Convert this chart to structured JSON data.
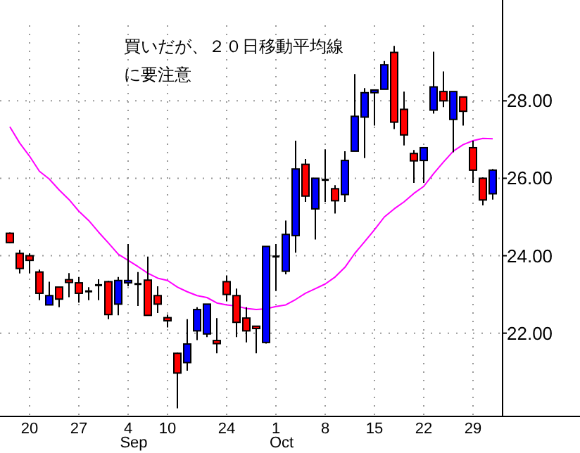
{
  "chart_data": {
    "type": "candlestick",
    "annotations": [
      "買いだが、２０日移動平均線",
      "に要注意"
    ],
    "categories": [
      null,
      null,
      "20",
      null,
      null,
      null,
      null,
      "27",
      null,
      null,
      null,
      null,
      "4\nSep",
      null,
      null,
      null,
      "10",
      null,
      null,
      null,
      null,
      null,
      "24",
      null,
      null,
      null,
      null,
      "1\nOct",
      null,
      null,
      null,
      null,
      "8",
      null,
      null,
      null,
      null,
      "15",
      null,
      null,
      null,
      null,
      "22",
      null,
      null,
      null,
      null,
      "29",
      null,
      null
    ],
    "ohlc": [
      [
        24.58,
        24.6,
        24.33,
        24.34
      ],
      [
        24.06,
        24.15,
        23.54,
        23.67
      ],
      [
        24.0,
        24.06,
        23.54,
        23.88
      ],
      [
        23.58,
        23.64,
        22.85,
        23.03
      ],
      [
        22.73,
        23.33,
        22.73,
        22.97
      ],
      [
        23.19,
        23.19,
        22.67,
        22.88
      ],
      [
        23.38,
        23.55,
        22.93,
        23.31
      ],
      [
        23.3,
        23.45,
        22.79,
        23.03
      ],
      [
        23.08,
        23.19,
        22.85,
        23.06
      ],
      [
        23.24,
        23.39,
        22.85,
        23.22
      ],
      [
        23.33,
        23.35,
        22.36,
        22.48
      ],
      [
        22.75,
        23.45,
        22.46,
        23.36
      ],
      [
        23.3,
        24.3,
        23.21,
        23.36
      ],
      [
        23.27,
        23.58,
        22.7,
        23.25
      ],
      [
        23.37,
        23.98,
        22.46,
        22.46
      ],
      [
        22.97,
        23.21,
        22.52,
        22.75
      ],
      [
        22.4,
        22.48,
        22.15,
        22.32
      ],
      [
        21.48,
        21.5,
        20.06,
        20.97
      ],
      [
        21.24,
        22.36,
        21.03,
        21.72
      ],
      [
        22.06,
        22.67,
        21.82,
        22.61
      ],
      [
        21.98,
        22.75,
        21.9,
        22.75
      ],
      [
        21.81,
        22.39,
        21.48,
        21.73
      ],
      [
        23.33,
        23.49,
        22.82,
        23.0
      ],
      [
        22.97,
        23.15,
        21.9,
        22.28
      ],
      [
        22.39,
        22.67,
        21.76,
        22.06
      ],
      [
        22.18,
        22.18,
        21.48,
        22.12
      ],
      [
        21.76,
        24.24,
        21.73,
        24.24
      ],
      [
        23.98,
        24.3,
        23.09,
        23.98
      ],
      [
        23.6,
        24.91,
        23.52,
        24.55
      ],
      [
        24.52,
        26.97,
        24.08,
        26.24
      ],
      [
        26.36,
        26.5,
        25.39,
        25.54
      ],
      [
        25.21,
        26.0,
        24.42,
        26.0
      ],
      [
        25.96,
        26.75,
        25.39,
        25.94
      ],
      [
        25.73,
        25.82,
        25.09,
        25.42
      ],
      [
        25.58,
        26.7,
        25.39,
        26.46
      ],
      [
        26.7,
        28.69,
        26.7,
        27.6
      ],
      [
        27.58,
        28.33,
        26.52,
        28.21
      ],
      [
        28.21,
        28.28,
        27.36,
        28.28
      ],
      [
        28.3,
        29.03,
        28.3,
        28.93
      ],
      [
        29.25,
        29.42,
        27.27,
        27.45
      ],
      [
        27.78,
        28.24,
        26.85,
        27.12
      ],
      [
        26.64,
        26.73,
        25.88,
        26.45
      ],
      [
        26.46,
        26.79,
        25.88,
        26.79
      ],
      [
        27.76,
        29.27,
        27.67,
        28.36
      ],
      [
        28.24,
        28.76,
        27.84,
        28.0
      ],
      [
        27.52,
        28.24,
        26.67,
        28.24
      ],
      [
        28.1,
        28.1,
        27.36,
        27.73
      ],
      [
        26.79,
        26.97,
        25.88,
        26.21
      ],
      [
        26.0,
        26.02,
        25.3,
        25.44
      ],
      [
        25.6,
        26.24,
        25.45,
        26.21
      ]
    ],
    "colors": [
      "#ff0000",
      "#ff0000",
      "#ff0000",
      "#ff0000",
      "#0000ff",
      "#ff0000",
      "#ff0000",
      "#ff0000",
      "#000000",
      "#000000",
      "#ff0000",
      "#0000ff",
      "#0000ff",
      "#000000",
      "#ff0000",
      "#ff0000",
      "#ff0000",
      "#ff0000",
      "#0000ff",
      "#0000ff",
      "#0000ff",
      "#ff0000",
      "#ff0000",
      "#ff0000",
      "#ff0000",
      "#ff0000",
      "#0000ff",
      "#000000",
      "#0000ff",
      "#0000ff",
      "#ff0000",
      "#0000ff",
      "#000000",
      "#ff0000",
      "#0000ff",
      "#0000ff",
      "#0000ff",
      "#0000ff",
      "#0000ff",
      "#ff0000",
      "#ff0000",
      "#ff0000",
      "#0000ff",
      "#0000ff",
      "#ff0000",
      "#0000ff",
      "#ff0000",
      "#ff0000",
      "#ff0000",
      "#0000ff"
    ],
    "series": [
      {
        "type": "line",
        "color": "#ff00ff",
        "values": [
          27.33,
          26.91,
          26.57,
          26.18,
          25.98,
          25.7,
          25.45,
          25.15,
          24.91,
          24.61,
          24.33,
          24.04,
          23.88,
          23.72,
          23.55,
          23.42,
          23.36,
          23.19,
          23.07,
          22.97,
          22.92,
          22.78,
          22.73,
          22.7,
          22.64,
          22.61,
          22.63,
          22.69,
          22.73,
          22.87,
          23.03,
          23.15,
          23.27,
          23.45,
          23.7,
          24.06,
          24.36,
          24.67,
          25.0,
          25.21,
          25.39,
          25.61,
          25.79,
          26.12,
          26.42,
          26.7,
          26.87,
          26.97,
          27.03,
          27.02
        ]
      }
    ],
    "ylim": [
      19.85,
      29.95
    ],
    "yticks": [
      {
        "value": 22,
        "label": "22.00"
      },
      {
        "value": 24,
        "label": "24.00"
      },
      {
        "value": 26,
        "label": "26.00"
      },
      {
        "value": 28,
        "label": "28.00"
      }
    ],
    "grid": true
  }
}
